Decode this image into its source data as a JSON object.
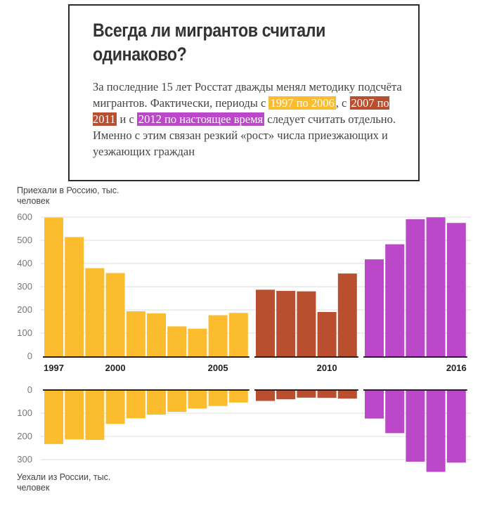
{
  "header": {
    "title_line1": "Всегда ли мигрантов считали",
    "title_line2": "одинаково?",
    "desc_part1": "За последние 15 лет Росстат дважды менял методику подсчёта мигрантов. Фактически, периоды с ",
    "period1": "1997 по 2006",
    "desc_part2": ", с ",
    "period2": "2007 по 2011",
    "desc_part3": " и с ",
    "period3": "2012 по настоящее время",
    "desc_part4": " следует считать отдельно. Именно с этим связан резкий «рост» числа приезжающих и уезжающих граждан"
  },
  "colors": {
    "period1": "#fbbc2d",
    "period2": "#b94f2e",
    "period3": "#bb47c9"
  },
  "chart_data": [
    {
      "type": "bar",
      "ylabel": "Приехали в Россию, тыс. человек",
      "ylim": [
        0,
        620
      ],
      "yticks": [
        0,
        100,
        200,
        300,
        400,
        500,
        600
      ],
      "xtick_labels": [
        {
          "year": 1997,
          "label": "1997"
        },
        {
          "year": 2000,
          "label": "2000"
        },
        {
          "year": 2005,
          "label": "2005"
        },
        {
          "year": 2010,
          "label": "2010"
        },
        {
          "year": 2016,
          "label": "2016"
        }
      ],
      "grid": true,
      "series": [
        {
          "period": "period1",
          "x": [
            1997,
            1998,
            1999,
            2000,
            2001,
            2002,
            2003,
            2004,
            2005,
            2006
          ],
          "values": [
            598,
            514,
            380,
            359,
            194,
            185,
            129,
            119,
            177,
            187
          ]
        },
        {
          "period": "period2",
          "x": [
            2007,
            2008,
            2009,
            2010,
            2011
          ],
          "values": [
            287,
            282,
            280,
            191,
            357
          ]
        },
        {
          "period": "period3",
          "x": [
            2012,
            2013,
            2014,
            2015,
            2016
          ],
          "values": [
            418,
            483,
            591,
            599,
            575
          ]
        }
      ]
    },
    {
      "type": "bar",
      "ylabel": "Уехали из России, тыс. человек",
      "ylim": [
        0,
        355
      ],
      "yticks": [
        0,
        100,
        200,
        300
      ],
      "grid": true,
      "series": [
        {
          "period": "period1",
          "x": [
            1997,
            1998,
            1999,
            2000,
            2001,
            2002,
            2003,
            2004,
            2005,
            2006
          ],
          "values": [
            233,
            213,
            215,
            146,
            122,
            106,
            94,
            80,
            69,
            54
          ]
        },
        {
          "period": "period2",
          "x": [
            2007,
            2008,
            2009,
            2010,
            2011
          ],
          "values": [
            47,
            40,
            33,
            34,
            37
          ]
        },
        {
          "period": "period3",
          "x": [
            2012,
            2013,
            2014,
            2015,
            2016
          ],
          "values": [
            123,
            186,
            309,
            353,
            313
          ]
        }
      ]
    }
  ]
}
